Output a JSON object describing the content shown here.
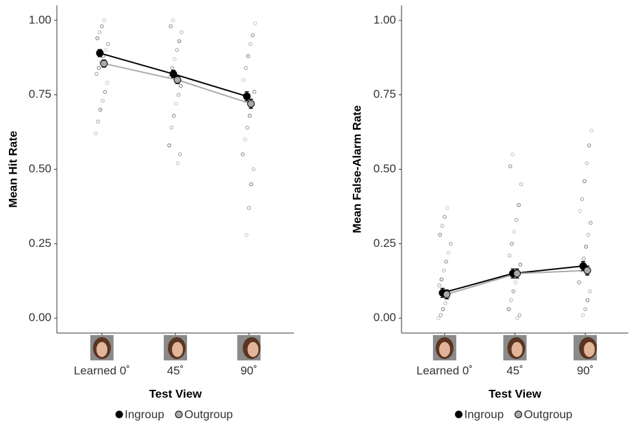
{
  "chart_data": [
    {
      "type": "line",
      "xlabel": "Test View",
      "ylabel": "Mean Hit Rate",
      "categories": [
        "Learned 0˚",
        "45˚",
        "90˚"
      ],
      "series": [
        {
          "name": "Ingroup",
          "color": "#000000",
          "values": [
            0.89,
            0.82,
            0.745
          ],
          "errors": [
            0.012,
            0.012,
            0.015
          ]
        },
        {
          "name": "Outgroup",
          "color": "#aaaaaa",
          "values": [
            0.855,
            0.8,
            0.72
          ],
          "errors": [
            0.012,
            0.012,
            0.015
          ]
        }
      ],
      "points": [
        [
          0.62,
          0.66,
          0.7,
          0.73,
          0.76,
          0.79,
          0.82,
          0.84,
          0.86,
          0.88,
          0.9,
          0.92,
          0.94,
          0.96,
          0.98,
          1.0
        ],
        [
          0.52,
          0.55,
          0.58,
          0.64,
          0.68,
          0.72,
          0.75,
          0.78,
          0.81,
          0.84,
          0.87,
          0.9,
          0.93,
          0.96,
          0.98,
          1.0
        ],
        [
          0.28,
          0.37,
          0.45,
          0.5,
          0.55,
          0.6,
          0.64,
          0.68,
          0.72,
          0.76,
          0.8,
          0.84,
          0.88,
          0.92,
          0.95,
          0.99
        ]
      ],
      "ylim": [
        -0.05,
        1.05
      ],
      "yticks": [
        {
          "value": 0,
          "label": "0.00"
        },
        {
          "value": 0.25,
          "label": "0.25"
        },
        {
          "value": 0.5,
          "label": "0.50"
        },
        {
          "value": 0.75,
          "label": "0.75"
        },
        {
          "value": 1,
          "label": "1.00"
        }
      ]
    },
    {
      "type": "line",
      "xlabel": "Test View",
      "ylabel": "Mean False-Alarm Rate",
      "categories": [
        "Learned 0˚",
        "45˚",
        "90˚"
      ],
      "series": [
        {
          "name": "Ingroup",
          "color": "#000000",
          "values": [
            0.085,
            0.15,
            0.175
          ],
          "errors": [
            0.015,
            0.015,
            0.015
          ]
        },
        {
          "name": "Outgroup",
          "color": "#aaaaaa",
          "values": [
            0.08,
            0.15,
            0.16
          ],
          "errors": [
            0.015,
            0.015,
            0.015
          ]
        }
      ],
      "points": [
        [
          0,
          0.01,
          0.03,
          0.05,
          0.07,
          0.09,
          0.11,
          0.13,
          0.16,
          0.19,
          0.22,
          0.25,
          0.28,
          0.31,
          0.34,
          0.37
        ],
        [
          0,
          0.01,
          0.03,
          0.06,
          0.09,
          0.12,
          0.15,
          0.18,
          0.21,
          0.25,
          0.29,
          0.33,
          0.38,
          0.45,
          0.51,
          0.55
        ],
        [
          0.01,
          0.03,
          0.06,
          0.09,
          0.12,
          0.16,
          0.2,
          0.24,
          0.28,
          0.32,
          0.36,
          0.4,
          0.46,
          0.52,
          0.58,
          0.63
        ]
      ],
      "ylim": [
        -0.05,
        1.05
      ],
      "yticks": [
        {
          "value": 0,
          "label": "0.00"
        },
        {
          "value": 0.25,
          "label": "0.25"
        },
        {
          "value": 0.5,
          "label": "0.50"
        },
        {
          "value": 0.75,
          "label": "0.75"
        },
        {
          "value": 1,
          "label": "1.00"
        }
      ]
    }
  ]
}
